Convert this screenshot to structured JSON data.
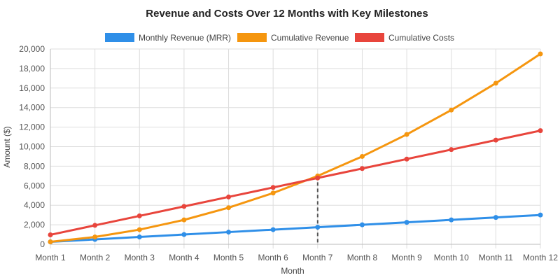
{
  "chart_data": {
    "type": "line",
    "title": "Revenue and Costs Over 12 Months with Key Milestones",
    "xlabel": "Month",
    "ylabel": "Amount ($)",
    "categories": [
      "Month 1",
      "Month 2",
      "Month 3",
      "Month 4",
      "Month 5",
      "Month 6",
      "Month 7",
      "Month 8",
      "Month 9",
      "Month 10",
      "Month 11",
      "Month 12"
    ],
    "ylim": [
      0,
      20000
    ],
    "yticks": [
      0,
      2000,
      4000,
      6000,
      8000,
      10000,
      12000,
      14000,
      16000,
      18000,
      20000
    ],
    "ytick_labels": [
      "0",
      "2,000",
      "4,000",
      "6,000",
      "8,000",
      "10,000",
      "12,000",
      "14,000",
      "16,000",
      "18,000",
      "20,000"
    ],
    "grid": true,
    "legend_position": "top",
    "series": [
      {
        "name": "Monthly Revenue (MRR)",
        "color": "#2f8fe8",
        "values": [
          250,
          500,
          750,
          1000,
          1250,
          1500,
          1750,
          2000,
          2250,
          2500,
          2750,
          3000
        ]
      },
      {
        "name": "Cumulative Revenue",
        "color": "#f5960f",
        "values": [
          250,
          750,
          1500,
          2500,
          3750,
          5250,
          7000,
          9000,
          11250,
          13750,
          16500,
          19500
        ]
      },
      {
        "name": "Cumulative Costs",
        "color": "#e8453c",
        "values": [
          970,
          1940,
          2910,
          3880,
          4850,
          5820,
          6790,
          7760,
          8730,
          9700,
          10670,
          11640
        ]
      }
    ],
    "annotations": [
      {
        "type": "vertical-dashed-line",
        "x": "Month 7",
        "color": "#555555"
      }
    ]
  }
}
